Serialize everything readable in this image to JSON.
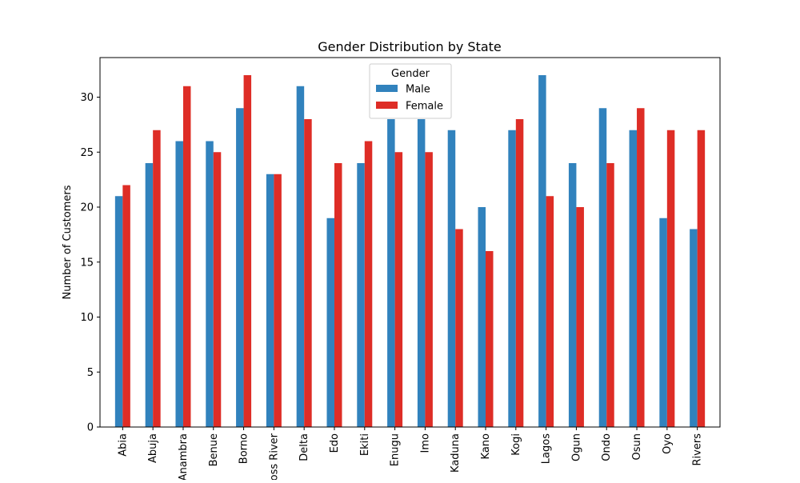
{
  "chart_data": {
    "type": "bar",
    "title": "Gender Distribution by State",
    "xlabel": "",
    "ylabel": "Number of Customers",
    "ylim": [
      0,
      33.6
    ],
    "yticks": [
      0,
      5,
      10,
      15,
      20,
      25,
      30
    ],
    "grid": false,
    "legend": {
      "title": "Gender",
      "placement": "top-center"
    },
    "categories": [
      "Abia",
      "Abuja",
      "Anambra",
      "Benue",
      "Borno",
      "Cross River",
      "Delta",
      "Edo",
      "Ekiti",
      "Enugu",
      "Imo",
      "Kaduna",
      "Kano",
      "Kogi",
      "Lagos",
      "Ogun",
      "Ondo",
      "Osun",
      "Oyo",
      "Rivers"
    ],
    "series": [
      {
        "name": "Male",
        "color": "#3182bd",
        "values": [
          21,
          24,
          26,
          26,
          29,
          23,
          31,
          19,
          24,
          28,
          28,
          27,
          20,
          27,
          32,
          24,
          29,
          27,
          19,
          18
        ]
      },
      {
        "name": "Female",
        "color": "#de2d26",
        "values": [
          22,
          27,
          31,
          25,
          32,
          23,
          28,
          24,
          26,
          25,
          25,
          18,
          16,
          28,
          21,
          20,
          24,
          29,
          27,
          27
        ]
      }
    ]
  }
}
